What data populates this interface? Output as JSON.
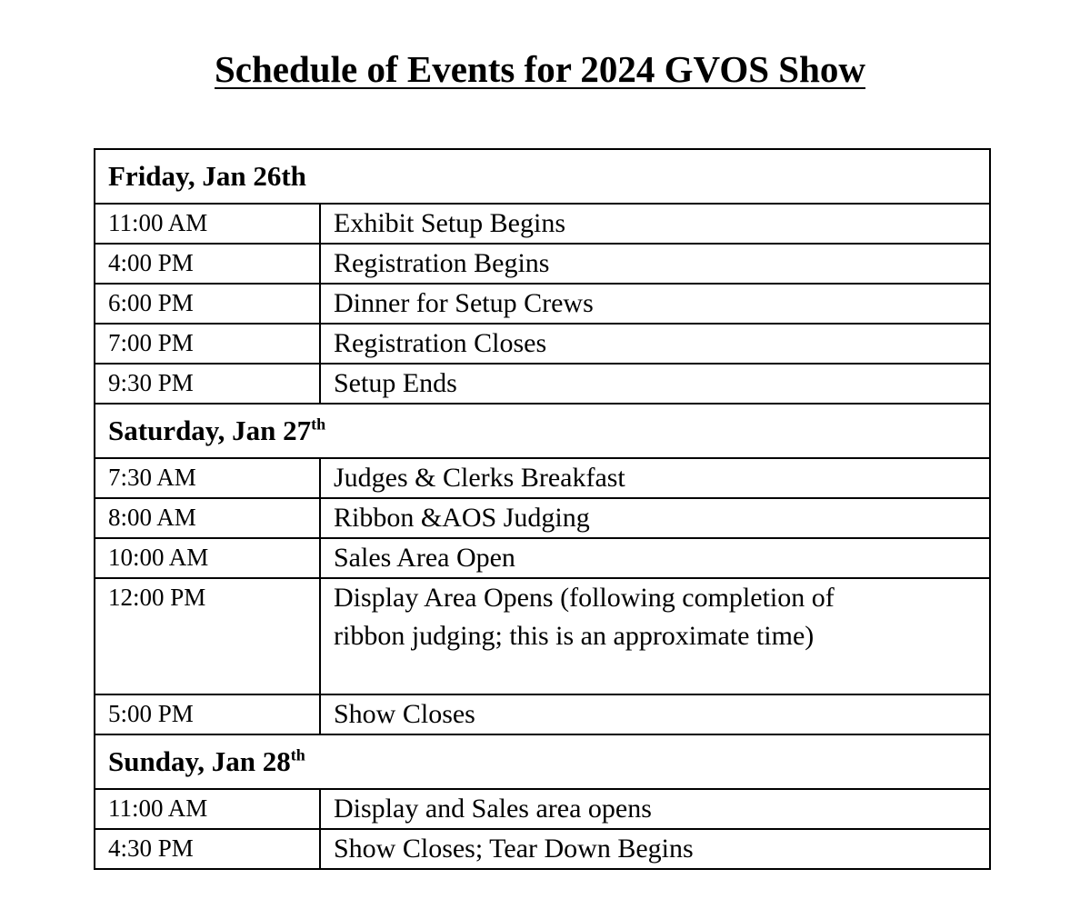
{
  "title": "Schedule of Events for 2024 GVOS Show",
  "days": [
    {
      "label": "Friday, Jan 26th",
      "suffix": "",
      "events": [
        {
          "time": "11:00 AM",
          "event": "Exhibit Setup Begins"
        },
        {
          "time": "4:00 PM",
          "event": "Registration Begins"
        },
        {
          "time": "6:00 PM",
          "event": "Dinner for Setup Crews"
        },
        {
          "time": "7:00 PM",
          "event": "Registration Closes"
        },
        {
          "time": "9:30 PM",
          "event": "Setup Ends"
        }
      ]
    },
    {
      "label": "Saturday, Jan 27",
      "suffix": "th",
      "events": [
        {
          "time": "7:30 AM",
          "event": "Judges & Clerks Breakfast"
        },
        {
          "time": "8:00 AM",
          "event": "Ribbon &AOS Judging"
        },
        {
          "time": "10:00 AM",
          "event": "Sales Area Open"
        },
        {
          "time": "12:00 PM",
          "event": "Display Area Opens (following completion of ribbon judging; this is an approximate time)"
        },
        {
          "time": "5:00 PM",
          "event": "Show Closes"
        }
      ]
    },
    {
      "label": "Sunday, Jan 28",
      "suffix": "th",
      "events": [
        {
          "time": "11:00 AM",
          "event": "Display and Sales area opens"
        },
        {
          "time": "4:30 PM",
          "event": "Show Closes; Tear Down Begins"
        }
      ]
    }
  ]
}
